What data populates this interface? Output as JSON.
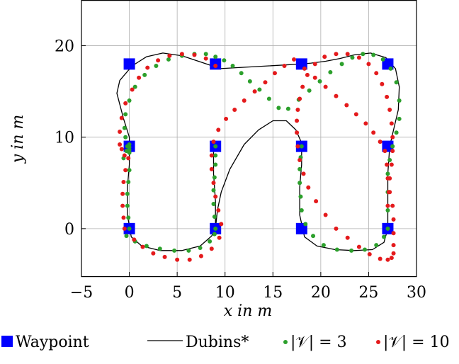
{
  "chart_data": {
    "type": "scatter",
    "title": "",
    "xlabel": "x in m",
    "ylabel": "y in m",
    "xlim": [
      -5,
      30
    ],
    "ylim": [
      -5.2,
      25
    ],
    "xticks": [
      -5,
      0,
      5,
      10,
      15,
      20,
      25,
      30
    ],
    "yticks": [
      0,
      10,
      20
    ],
    "xtick_labels": [
      "−5",
      "0",
      "5",
      "10",
      "15",
      "20",
      "25",
      "30"
    ],
    "ytick_labels": [
      "0",
      "10",
      "20"
    ],
    "grid": true,
    "legend_position": "bottom",
    "series": [
      {
        "name": "Waypoint",
        "marker": "square",
        "color": "#0000ff",
        "x": [
          0,
          9,
          18,
          27,
          0,
          9,
          18,
          27,
          0,
          9,
          18,
          27
        ],
        "y": [
          18,
          18,
          18,
          18,
          9,
          9,
          9,
          9,
          0,
          0,
          0,
          0
        ]
      },
      {
        "name": "Dubins*",
        "marker": "line",
        "color": "#000000",
        "x": [
          9,
          9.2,
          9.6,
          10.5,
          12,
          13.5,
          15,
          16.4,
          17.4,
          17.9,
          18,
          18,
          17.8,
          17.8,
          18.3,
          19.6,
          21.5,
          23.5,
          25.4,
          26.6,
          27,
          27,
          27,
          27.2,
          27.6,
          28.1,
          28.2,
          27.8,
          26.8,
          25.2,
          23.5,
          22,
          20.5,
          19,
          18,
          9.5,
          7.5,
          5.5,
          3.5,
          1.8,
          0.3,
          -1,
          -1.3,
          -0.6,
          0,
          0,
          0,
          -0.2,
          -0.2,
          0.2,
          1.3,
          3.2,
          5.5,
          7.4,
          8.6,
          9,
          9,
          8.8,
          8.8,
          9
        ],
        "y": [
          0,
          2,
          4,
          6.5,
          9.2,
          10.8,
          11.8,
          11.8,
          10.8,
          9.6,
          9,
          7,
          4.5,
          1.5,
          -0.9,
          -1.9,
          -2.3,
          -2.4,
          -2.3,
          -1.5,
          0,
          3,
          6,
          9,
          10.8,
          13,
          15.5,
          17.5,
          18.7,
          19.2,
          19,
          18.6,
          18.3,
          18.1,
          18,
          17.5,
          18.2,
          18.9,
          19.2,
          18.8,
          17.8,
          16.2,
          14.8,
          12,
          10,
          9,
          7,
          4.5,
          1.5,
          -0.9,
          -1.9,
          -2.4,
          -2.4,
          -1.9,
          -0.8,
          0,
          3,
          6,
          8.5,
          9
        ]
      },
      {
        "name": "|𝒱| = 3",
        "marker": "dot",
        "color": "#2ca02c",
        "x": [
          0,
          -0.1,
          -0.2,
          -0.2,
          -0.1,
          0,
          -0.3,
          -0.6,
          -0.3,
          0.6,
          1.8,
          3.2,
          4.7,
          6.2,
          7.4,
          8.4,
          8.9,
          9,
          8.9,
          8.8,
          8.8,
          8.9,
          9,
          9,
          9,
          18,
          17.9,
          17.8,
          17.8,
          17.9,
          18,
          18.4,
          19.2,
          20.3,
          21.7,
          23.2,
          24.6,
          25.8,
          26.6,
          27,
          27,
          27,
          27,
          27.2,
          27.5,
          27.9,
          28.2,
          28.2,
          27.9,
          27.3,
          26.5,
          25.5,
          24.4,
          23.3,
          22.2,
          21,
          19.9,
          18.8,
          17.7,
          16.6,
          15.6,
          14.6,
          13.6,
          12.6,
          11.7,
          10.8,
          9.9,
          9,
          8,
          6.8,
          5.5,
          4.1,
          2.8,
          1.6,
          0.6,
          0,
          -0.4,
          -0.5,
          -0.4,
          -0.2,
          0,
          0,
          0,
          0
        ],
        "y": [
          0,
          1.2,
          2.5,
          3.8,
          5.1,
          6.4,
          -0.8,
          7.7,
          8.5,
          -1.4,
          -1.9,
          -2.2,
          -2.4,
          -2.4,
          -2.1,
          -1.4,
          -0.6,
          0,
          1.3,
          2.7,
          4.2,
          5.6,
          7,
          8,
          9,
          9,
          7.8,
          6.5,
          5,
          3.5,
          2,
          0.5,
          -0.8,
          -1.8,
          -2.3,
          -2.4,
          -2.3,
          -1.8,
          -0.9,
          0,
          2,
          4,
          6,
          7.5,
          9,
          10.5,
          12,
          14,
          16,
          17.5,
          18.5,
          19,
          19.1,
          18.7,
          18,
          17.1,
          16.1,
          15.1,
          14.1,
          13.1,
          13.2,
          14.2,
          15.2,
          16.1,
          17,
          17.8,
          18.4,
          18.8,
          19.1,
          19.1,
          18.9,
          18.5,
          17.8,
          16.8,
          15.5,
          14,
          12.5,
          11,
          10,
          9,
          8.3,
          8.6,
          8.9,
          9.2
        ]
      },
      {
        "name": "|𝒱| = 10",
        "marker": "dot",
        "color": "#e41a1c",
        "x": [
          -0.5,
          -0.6,
          -0.7,
          -0.7,
          -0.6,
          -0.4,
          -0.1,
          0.5,
          1.4,
          2.5,
          3.7,
          5,
          6.3,
          7.5,
          8.6,
          9.4,
          9.6,
          9.3,
          9,
          8.8,
          8.6,
          8.6,
          8.8,
          9.3,
          10.1,
          11,
          12,
          13.1,
          14.2,
          15.2,
          16.2,
          17.2,
          18.3,
          19.4,
          20.5,
          21.6,
          22.7,
          23.7,
          24.7,
          25.5,
          26.2,
          26.7,
          26.9,
          27,
          27.2,
          27.5,
          27.6,
          27.6,
          27.6,
          27.6,
          27.4,
          27,
          26.2,
          25.1,
          24,
          22.8,
          21.6,
          20.5,
          19.5,
          18.7,
          18.2,
          17.8,
          17.6,
          17.5,
          17.5,
          17.6,
          17.8,
          18.1,
          18.6,
          19.4,
          20.4,
          21.6,
          22.8,
          24,
          25,
          25.8,
          26.4,
          26.9,
          27.2,
          27.4,
          27.5,
          27.5,
          27.4,
          27.2,
          27.1,
          27,
          9,
          8,
          6.8,
          5.5,
          4.2,
          3,
          1.9,
          1,
          0.3,
          -0.4,
          -0.8,
          -1,
          -1,
          -0.8,
          -0.5
        ],
        "y": [
          0,
          1.2,
          2.5,
          3.8,
          5.1,
          6.4,
          7.7,
          -1.2,
          -2,
          -2.7,
          -3.1,
          -3.4,
          -3.4,
          -3,
          -2.2,
          -1,
          0.5,
          2,
          3.5,
          5,
          6.5,
          8,
          9.5,
          10.8,
          12,
          13,
          14,
          15,
          16,
          17,
          17.8,
          18.5,
          17.5,
          16.5,
          15.5,
          14.5,
          13.5,
          12.5,
          11.5,
          10.5,
          9.5,
          8.5,
          7,
          5.5,
          4,
          2.5,
          1,
          -0.5,
          -1.8,
          -2.7,
          -3.2,
          -3.4,
          -3.3,
          -2.8,
          -2,
          -1,
          0,
          1.5,
          3,
          4.5,
          6,
          7.5,
          9,
          10.5,
          11.8,
          13,
          14.2,
          15.5,
          16.8,
          18,
          18.8,
          19.1,
          19.1,
          18.7,
          18,
          17,
          15.8,
          14.4,
          13,
          11.5,
          10,
          8.5,
          7,
          5.5,
          4,
          2.5,
          17.8,
          18.6,
          19,
          19.1,
          18.9,
          18.4,
          17.6,
          16.5,
          15.2,
          13.7,
          12.1,
          10.6,
          9.2,
          8.7,
          8
        ]
      }
    ]
  }
}
